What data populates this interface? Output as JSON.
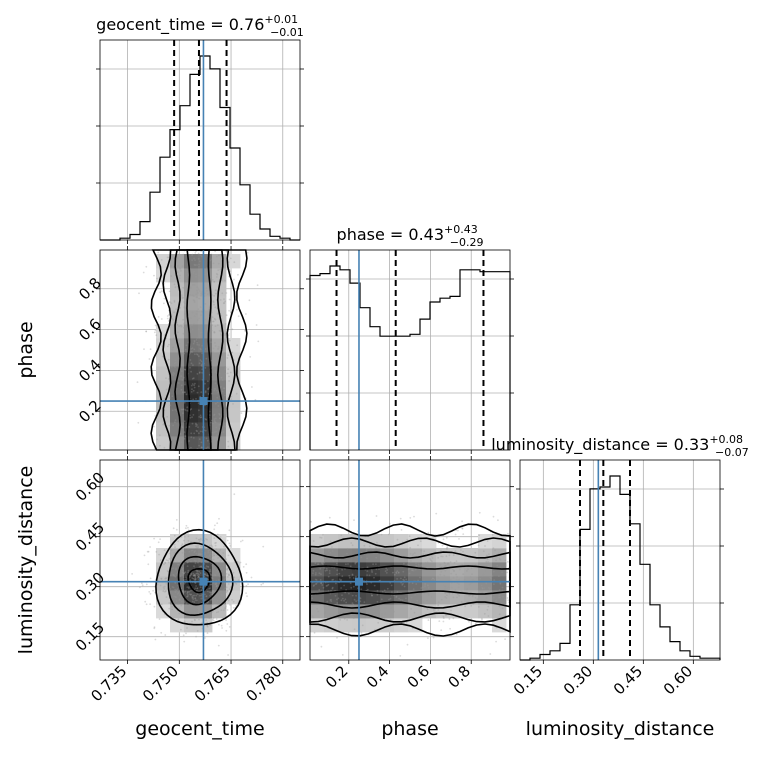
{
  "chart_data": {
    "type": "corner",
    "parameters": [
      "geocent_time",
      "phase",
      "luminosity_distance"
    ],
    "truths": {
      "geocent_time": 0.757,
      "phase": 0.25,
      "luminosity_distance": 0.315
    },
    "titles": {
      "geocent_time": {
        "name": "geocent_time = 0.76",
        "up": "+0.01",
        "down": "−0.01"
      },
      "phase": {
        "name": "phase = 0.43",
        "up": "+0.43",
        "down": "−0.29"
      },
      "luminosity_distance": {
        "name": "luminosity_distance = 0.33",
        "up": "+0.08",
        "down": "−0.07"
      }
    },
    "ranges": {
      "geocent_time": [
        0.727,
        0.785
      ],
      "phase": [
        0.01,
        0.99
      ],
      "luminosity_distance": [
        0.08,
        0.68
      ]
    },
    "ticks": {
      "geocent_time": {
        "values": [
          0.735,
          0.75,
          0.765,
          0.78
        ],
        "labels": [
          "0.735",
          "0.750",
          "0.765",
          "0.780"
        ]
      },
      "phase": {
        "values": [
          0.2,
          0.4,
          0.6,
          0.8
        ],
        "labels": [
          "0.2",
          "0.4",
          "0.6",
          "0.8"
        ]
      },
      "luminosity_distance": {
        "values": [
          0.15,
          0.3,
          0.45,
          0.6
        ],
        "labels": [
          "0.15",
          "0.30",
          "0.45",
          "0.60"
        ]
      }
    },
    "quantiles": {
      "geocent_time": [
        0.7485,
        0.7557,
        0.7637
      ],
      "phase": [
        0.14,
        0.43,
        0.86
      ],
      "luminosity_distance": [
        0.26,
        0.33,
        0.41
      ]
    },
    "histograms": {
      "geocent_time": [
        0,
        0,
        0.01,
        0.03,
        0.1,
        0.26,
        0.45,
        0.6,
        0.73,
        0.9,
        1.0,
        0.93,
        0.72,
        0.5,
        0.3,
        0.14,
        0.06,
        0.02,
        0.01,
        0
      ],
      "phase": [
        0.92,
        0.93,
        0.97,
        0.95,
        0.88,
        0.75,
        0.65,
        0.6,
        0.6,
        0.6,
        0.61,
        0.69,
        0.78,
        0.8,
        0.81,
        0.95,
        0.95,
        0.94,
        0.94,
        0.94
      ],
      "luminosity_distance": [
        0,
        0.01,
        0.03,
        0.05,
        0.09,
        0.3,
        0.71,
        0.93,
        0.94,
        1.0,
        0.9,
        0.74,
        0.52,
        0.3,
        0.18,
        0.1,
        0.05,
        0.02,
        0.01,
        0.01
      ]
    },
    "grid": true
  }
}
